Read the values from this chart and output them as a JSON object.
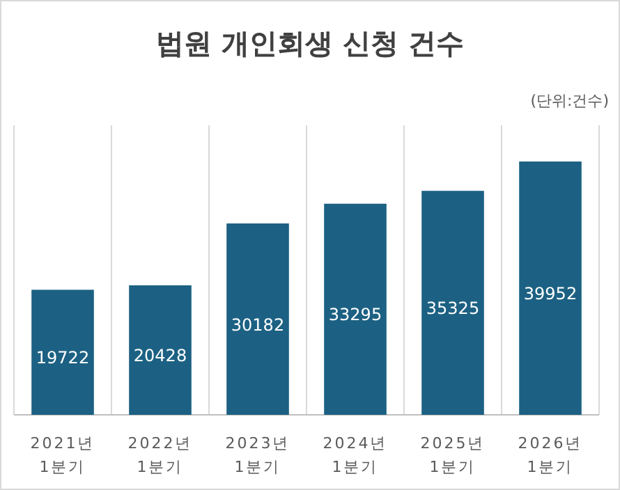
{
  "chart_data": {
    "type": "bar",
    "title": "법원 개인회생 신청 건수",
    "annotations": [
      "(단위:건수)"
    ],
    "categories": [
      "2021년\n1분기",
      "2022년\n1분기",
      "2023년\n1분기",
      "2024년\n1분기",
      "2025년\n1분기",
      "2026년\n1분기"
    ],
    "values": [
      19722,
      20428,
      30182,
      33295,
      35325,
      39952
    ],
    "color": "#1c6183",
    "data_labels": true,
    "grid": "x"
  }
}
